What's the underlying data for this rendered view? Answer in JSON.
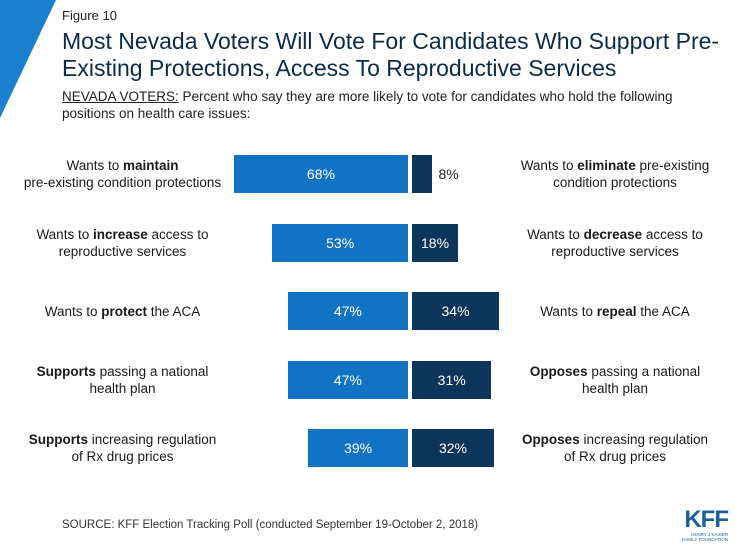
{
  "figure_label": "Figure 10",
  "title": "Most Nevada Voters Will Vote For Candidates Who Support Pre-Existing Protections, Access To Reproductive Services",
  "subtitle": {
    "lead": "NEVADA VOTERS:",
    "text": " Percent who say they are more likely to vote for candidates who hold the following positions on health care issues:"
  },
  "source": "SOURCE: KFF Election Tracking Poll (conducted September 19-October 2, 2018)",
  "logo": {
    "mark": "KFF",
    "line1": "HENRY J KAISER",
    "line2": "FAMILY FOUNDATION"
  },
  "colors": {
    "left_bar": "#1273c4",
    "right_bar": "#0d3559",
    "corner": "#1b7fd0"
  },
  "chart_data": {
    "type": "bar",
    "orientation": "horizontal-diverging",
    "value_unit": "%",
    "rows": [
      {
        "left": {
          "pre": "Wants to ",
          "bold": "maintain",
          "post": "\npre-existing condition protections",
          "value": 68
        },
        "right": {
          "pre": "Wants to ",
          "bold": "eliminate",
          "post": " pre-existing\ncondition protections",
          "value": 8
        }
      },
      {
        "left": {
          "pre": "Wants to ",
          "bold": "increase",
          "post": " access to\nreproductive services",
          "value": 53
        },
        "right": {
          "pre": "Wants to ",
          "bold": "decrease",
          "post": " access to\nreproductive services",
          "value": 18
        }
      },
      {
        "left": {
          "pre": "Wants to ",
          "bold": "protect",
          "post": " the ACA",
          "value": 47
        },
        "right": {
          "pre": "Wants to ",
          "bold": "repeal",
          "post": " the ACA",
          "value": 34
        }
      },
      {
        "left": {
          "pre": "",
          "bold": "Supports",
          "post": " passing a national\nhealth plan",
          "value": 47
        },
        "right": {
          "pre": "",
          "bold": "Opposes",
          "post": " passing a national\nhealth plan",
          "value": 31
        }
      },
      {
        "left": {
          "pre": "",
          "bold": "Supports",
          "post": " increasing regulation\nof Rx drug prices",
          "value": 39
        },
        "right": {
          "pre": "",
          "bold": "Opposes",
          "post": " increasing regulation\nof Rx drug prices",
          "value": 32
        }
      }
    ]
  }
}
